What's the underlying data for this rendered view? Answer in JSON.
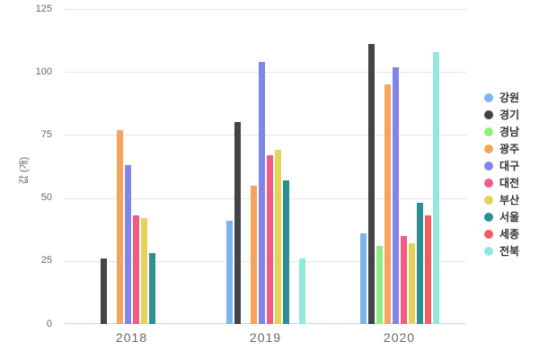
{
  "chart_data": {
    "type": "bar",
    "title": "",
    "xlabel": "",
    "ylabel": "값 (개)",
    "categories": [
      "2018",
      "2019",
      "2020"
    ],
    "series": [
      {
        "name": "강원",
        "color": "#7cb5ec",
        "values": [
          0,
          41,
          36
        ]
      },
      {
        "name": "경기",
        "color": "#434348",
        "values": [
          26,
          80,
          111
        ]
      },
      {
        "name": "경남",
        "color": "#90ed7d",
        "values": [
          0,
          0,
          31
        ]
      },
      {
        "name": "광주",
        "color": "#f7a35c",
        "values": [
          77,
          55,
          95
        ]
      },
      {
        "name": "대구",
        "color": "#8085e9",
        "values": [
          63,
          104,
          102
        ]
      },
      {
        "name": "대전",
        "color": "#f15c80",
        "values": [
          43,
          67,
          35
        ]
      },
      {
        "name": "부산",
        "color": "#e4d354",
        "values": [
          42,
          69,
          32
        ]
      },
      {
        "name": "서울",
        "color": "#2b908f",
        "values": [
          28,
          57,
          48
        ]
      },
      {
        "name": "세종",
        "color": "#f45b5b",
        "values": [
          0,
          0,
          43
        ]
      },
      {
        "name": "전북",
        "color": "#91e8e1",
        "values": [
          0,
          26,
          108
        ]
      }
    ],
    "yticks": [
      0,
      25,
      50,
      75,
      100,
      125
    ],
    "ylim": [
      0,
      125
    ],
    "grid": true,
    "legend_position": "right"
  },
  "colors": {
    "background": "#ffffff",
    "grid_line": "#e6e6e6",
    "axis_line": "#ccd6eb",
    "tick_label": "#666666",
    "legend_label": "#333333"
  }
}
